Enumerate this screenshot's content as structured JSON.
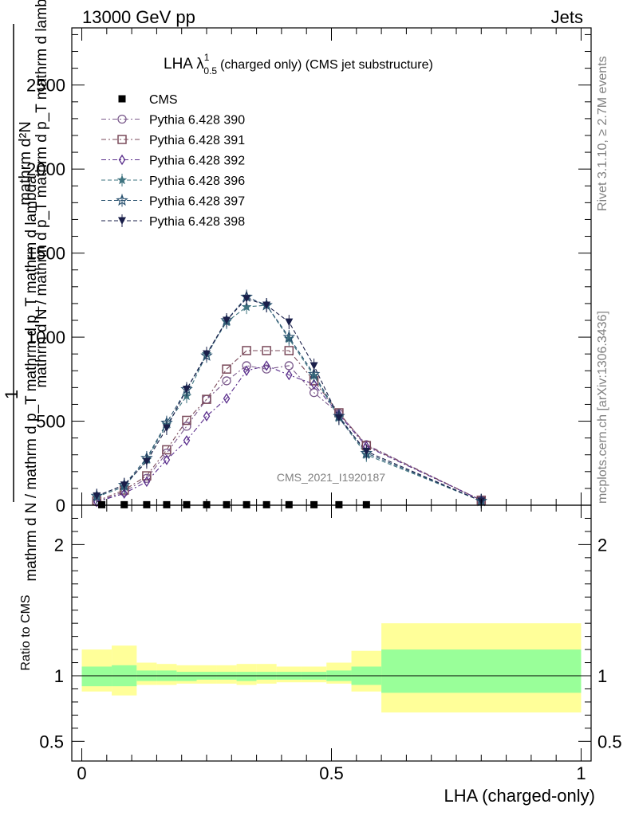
{
  "header": {
    "left": "13000 GeV pp",
    "right": "Jets"
  },
  "side_text": {
    "rivet": "Rivet 3.1.10, ≥ 2.7M events",
    "mcplots": "mcplots.cern.ch [arXiv:1306.3436]"
  },
  "chart_data": {
    "type": "line",
    "title": "LHA λ",
    "title_sup": "1",
    "title_sub": "0.5",
    "title_suffix": "(charged only) (CMS jet substructure)",
    "watermark": "CMS_2021_I1920187",
    "xlabel": "LHA (charged-only)",
    "ylabel_line1": "1",
    "ylabel_line2": "mathrm d N / mathrm d p_T mathrm d p_T mathrm d lambda",
    "ylabel_top": "mathrm d²N",
    "ylabel_bottom": "mathrm d N / mathrm d p_T mathrm d p_T mathrm d lambda",
    "ratio_ylabel": "Ratio to CMS",
    "xlim": [
      -0.02,
      1.02
    ],
    "ylim": [
      0,
      2840
    ],
    "ratio_ylim": [
      0.35,
      2.3
    ],
    "x_ticks": [
      {
        "v": 0,
        "label": "0"
      },
      {
        "v": 0.5,
        "label": "0.5"
      },
      {
        "v": 1,
        "label": "1"
      }
    ],
    "y_ticks": [
      {
        "v": 0,
        "label": "0"
      },
      {
        "v": 500,
        "label": "500"
      },
      {
        "v": 1000,
        "label": "1000"
      },
      {
        "v": 1500,
        "label": "1500"
      },
      {
        "v": 2000,
        "label": "2000"
      },
      {
        "v": 2500,
        "label": "2500"
      }
    ],
    "ratio_ticks": [
      {
        "v": 0.5,
        "label": "0.5"
      },
      {
        "v": 1,
        "label": "1"
      },
      {
        "v": 2,
        "label": "2"
      }
    ],
    "data": {
      "name": "CMS",
      "x": [
        0.04,
        0.085,
        0.13,
        0.17,
        0.21,
        0.25,
        0.29,
        0.33,
        0.37,
        0.415,
        0.465,
        0.515,
        0.57
      ],
      "y": [
        3,
        3,
        3,
        3,
        3,
        3,
        3,
        3,
        3,
        3,
        3,
        3,
        3
      ]
    },
    "series": [
      {
        "name": "Pythia 6.428 390",
        "color": "#7b5a8c",
        "marker": "circle-open",
        "dash": "6 3 2 3",
        "x": [
          0.03,
          0.085,
          0.13,
          0.17,
          0.21,
          0.25,
          0.29,
          0.33,
          0.37,
          0.415,
          0.465,
          0.515,
          0.57,
          0.8
        ],
        "y": [
          20,
          80,
          160,
          310,
          470,
          630,
          740,
          830,
          810,
          830,
          670,
          545,
          360,
          30
        ]
      },
      {
        "name": "Pythia 6.428 391",
        "color": "#7a4a5a",
        "marker": "square-open",
        "dash": "6 3 2 3",
        "x": [
          0.03,
          0.085,
          0.13,
          0.17,
          0.21,
          0.25,
          0.29,
          0.33,
          0.37,
          0.415,
          0.465,
          0.515,
          0.57,
          0.8
        ],
        "y": [
          25,
          90,
          175,
          330,
          505,
          630,
          810,
          920,
          920,
          920,
          740,
          550,
          355,
          30
        ]
      },
      {
        "name": "Pythia 6.428 392",
        "color": "#5a2e8c",
        "marker": "diamond-open",
        "dash": "6 3 2 3",
        "x": [
          0.03,
          0.085,
          0.13,
          0.17,
          0.21,
          0.25,
          0.29,
          0.33,
          0.37,
          0.415,
          0.465,
          0.515,
          0.57,
          0.8
        ],
        "y": [
          20,
          70,
          140,
          270,
          385,
          530,
          635,
          800,
          830,
          775,
          720,
          540,
          350,
          30
        ]
      },
      {
        "name": "Pythia 6.428 396",
        "color": "#3f7480",
        "marker": "star-filled",
        "dash": "5 3",
        "x": [
          0.03,
          0.085,
          0.13,
          0.17,
          0.21,
          0.25,
          0.29,
          0.33,
          0.37,
          0.415,
          0.465,
          0.515,
          0.57,
          0.8
        ],
        "y": [
          50,
          110,
          270,
          480,
          650,
          900,
          1090,
          1180,
          1190,
          990,
          770,
          520,
          300,
          25
        ]
      },
      {
        "name": "Pythia 6.428 397",
        "color": "#2a5270",
        "marker": "star-open",
        "dash": "5 3",
        "x": [
          0.03,
          0.085,
          0.13,
          0.17,
          0.21,
          0.25,
          0.29,
          0.33,
          0.37,
          0.415,
          0.465,
          0.515,
          0.57,
          0.8
        ],
        "y": [
          55,
          120,
          280,
          490,
          690,
          890,
          1100,
          1240,
          1190,
          1000,
          780,
          530,
          310,
          25
        ]
      },
      {
        "name": "Pythia 6.428 398",
        "color": "#1a1f4a",
        "marker": "triangle-down-filled",
        "dash": "5 3",
        "x": [
          0.03,
          0.085,
          0.13,
          0.17,
          0.21,
          0.25,
          0.29,
          0.33,
          0.37,
          0.415,
          0.465,
          0.515,
          0.57,
          0.8
        ],
        "y": [
          55,
          120,
          260,
          460,
          690,
          900,
          1100,
          1230,
          1190,
          1090,
          830,
          520,
          320,
          25
        ]
      }
    ],
    "ratio_bands": [
      {
        "x0": 0.0,
        "x1": 0.06,
        "y_lo": 0.88,
        "y_hi": 1.2,
        "g_lo": 0.92,
        "g_hi": 1.07
      },
      {
        "x0": 0.06,
        "x1": 0.11,
        "y_lo": 0.85,
        "y_hi": 1.23,
        "g_lo": 0.92,
        "g_hi": 1.08
      },
      {
        "x0": 0.11,
        "x1": 0.15,
        "y_lo": 0.93,
        "y_hi": 1.1,
        "g_lo": 0.96,
        "g_hi": 1.04
      },
      {
        "x0": 0.15,
        "x1": 0.19,
        "y_lo": 0.93,
        "y_hi": 1.09,
        "g_lo": 0.96,
        "g_hi": 1.04
      },
      {
        "x0": 0.19,
        "x1": 0.23,
        "y_lo": 0.94,
        "y_hi": 1.08,
        "g_lo": 0.96,
        "g_hi": 1.03
      },
      {
        "x0": 0.23,
        "x1": 0.27,
        "y_lo": 0.94,
        "y_hi": 1.08,
        "g_lo": 0.97,
        "g_hi": 1.03
      },
      {
        "x0": 0.27,
        "x1": 0.31,
        "y_lo": 0.94,
        "y_hi": 1.08,
        "g_lo": 0.97,
        "g_hi": 1.03
      },
      {
        "x0": 0.31,
        "x1": 0.35,
        "y_lo": 0.93,
        "y_hi": 1.09,
        "g_lo": 0.96,
        "g_hi": 1.03
      },
      {
        "x0": 0.35,
        "x1": 0.39,
        "y_lo": 0.94,
        "y_hi": 1.09,
        "g_lo": 0.97,
        "g_hi": 1.03
      },
      {
        "x0": 0.39,
        "x1": 0.44,
        "y_lo": 0.95,
        "y_hi": 1.07,
        "g_lo": 0.97,
        "g_hi": 1.03
      },
      {
        "x0": 0.44,
        "x1": 0.49,
        "y_lo": 0.95,
        "y_hi": 1.07,
        "g_lo": 0.97,
        "g_hi": 1.03
      },
      {
        "x0": 0.49,
        "x1": 0.54,
        "y_lo": 0.94,
        "y_hi": 1.1,
        "g_lo": 0.96,
        "g_hi": 1.04
      },
      {
        "x0": 0.54,
        "x1": 0.6,
        "y_lo": 0.88,
        "y_hi": 1.19,
        "g_lo": 0.93,
        "g_hi": 1.07
      },
      {
        "x0": 0.6,
        "x1": 1.0,
        "y_lo": 0.72,
        "y_hi": 1.4,
        "g_lo": 0.87,
        "g_hi": 1.2
      }
    ],
    "colors": {
      "band_outer": "#ffff99",
      "band_inner": "#99ff99",
      "data": "#000000"
    }
  }
}
